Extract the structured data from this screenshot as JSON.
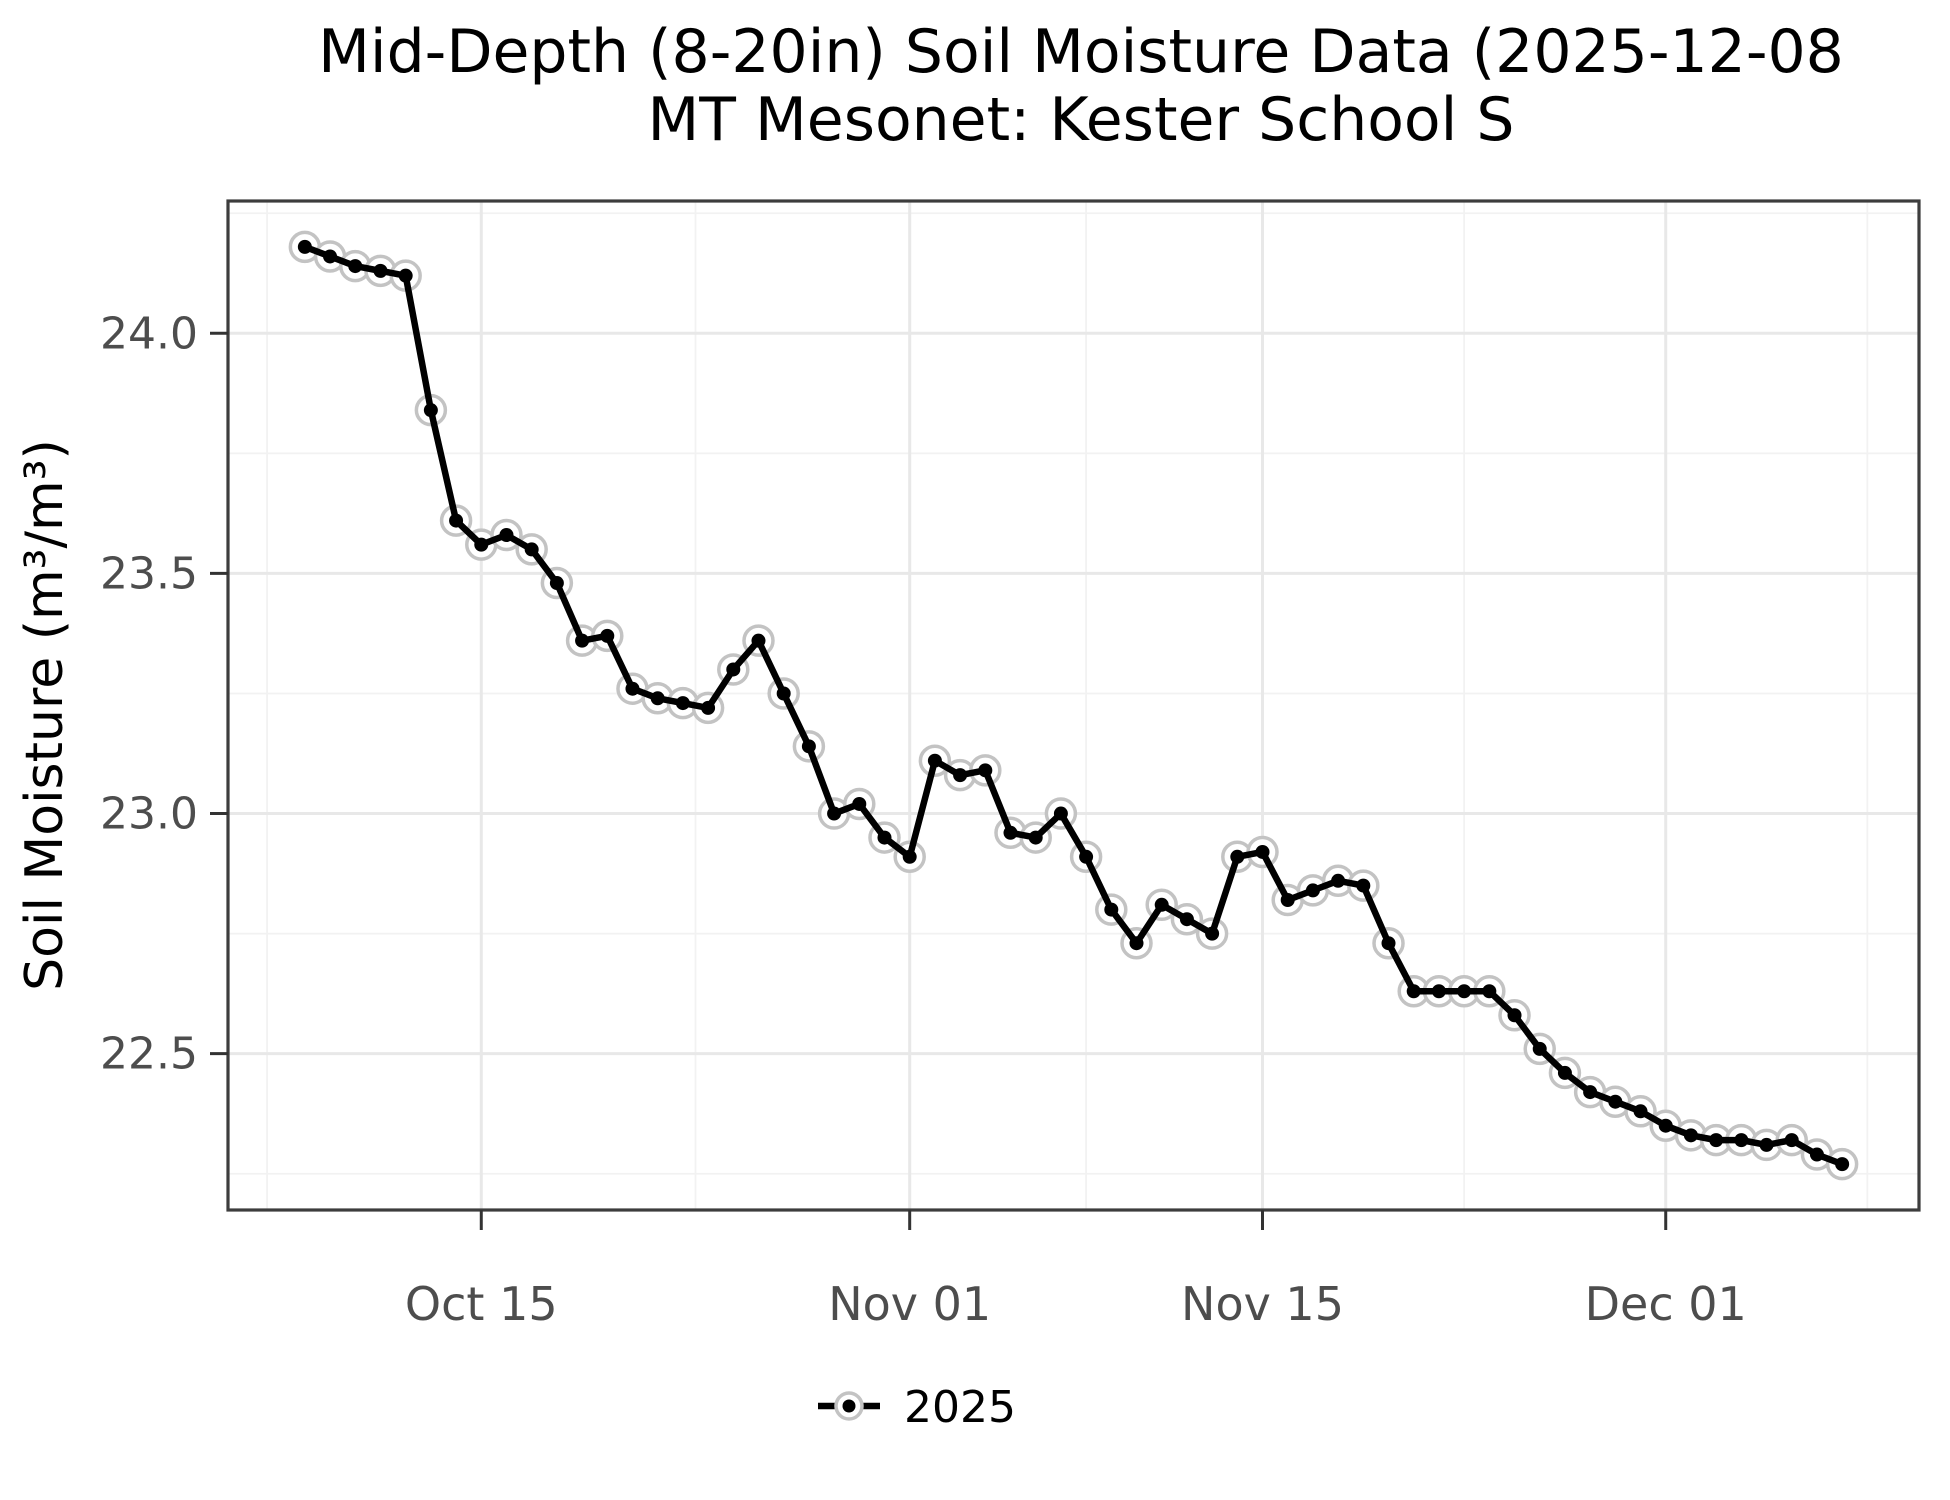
{
  "title": {
    "line1": "Mid-Depth (8-20in) Soil Moisture Data (2025-12-08",
    "line2": "MT Mesonet: Kester School S"
  },
  "legend": {
    "label": "2025",
    "position": "bottom"
  },
  "chart_data": {
    "type": "line",
    "title": "Mid-Depth (8-20in) Soil Moisture Data (2025-12-08",
    "subtitle": "MT Mesonet: Kester School S",
    "xlabel": "",
    "ylabel": "Soil Moisture (m³/m³)",
    "grid": "on",
    "legend_position": "bottom",
    "x_start_date": "2025-10-08",
    "x_tick_labels": [
      "Oct 15",
      "Nov 01",
      "Nov 15",
      "Dec 01"
    ],
    "x_tick_dates": [
      "2025-10-15",
      "2025-11-01",
      "2025-11-15",
      "2025-12-01"
    ],
    "y_tick_labels": [
      "24.0",
      "23.5",
      "23.0",
      "22.5"
    ],
    "y_tick_values": [
      24.0,
      23.5,
      23.0,
      22.5
    ],
    "y_minor_values": [
      24.25,
      23.75,
      23.25,
      22.75,
      22.25
    ],
    "ylim_padded": [
      22.174,
      24.276
    ],
    "series": [
      {
        "name": "2025",
        "color": "#000000",
        "dates": [
          "2025-10-08",
          "2025-10-09",
          "2025-10-10",
          "2025-10-11",
          "2025-10-12",
          "2025-10-13",
          "2025-10-14",
          "2025-10-15",
          "2025-10-16",
          "2025-10-17",
          "2025-10-18",
          "2025-10-19",
          "2025-10-20",
          "2025-10-21",
          "2025-10-22",
          "2025-10-23",
          "2025-10-24",
          "2025-10-25",
          "2025-10-26",
          "2025-10-27",
          "2025-10-28",
          "2025-10-29",
          "2025-10-30",
          "2025-10-31",
          "2025-11-01",
          "2025-11-02",
          "2025-11-03",
          "2025-11-04",
          "2025-11-05",
          "2025-11-06",
          "2025-11-07",
          "2025-11-08",
          "2025-11-09",
          "2025-11-10",
          "2025-11-11",
          "2025-11-12",
          "2025-11-13",
          "2025-11-14",
          "2025-11-15",
          "2025-11-16",
          "2025-11-17",
          "2025-11-18",
          "2025-11-19",
          "2025-11-20",
          "2025-11-21",
          "2025-11-22",
          "2025-11-23",
          "2025-11-24",
          "2025-11-25",
          "2025-11-26",
          "2025-11-27",
          "2025-11-28",
          "2025-11-29",
          "2025-11-30",
          "2025-12-01",
          "2025-12-02",
          "2025-12-03",
          "2025-12-04",
          "2025-12-05",
          "2025-12-06",
          "2025-12-07",
          "2025-12-08"
        ],
        "values": [
          24.18,
          24.16,
          24.14,
          24.13,
          24.12,
          23.84,
          23.61,
          23.56,
          23.58,
          23.55,
          23.48,
          23.36,
          23.37,
          23.26,
          23.24,
          23.23,
          23.22,
          23.3,
          23.36,
          23.25,
          23.14,
          23.0,
          23.02,
          22.95,
          22.91,
          23.11,
          23.08,
          23.09,
          22.96,
          22.95,
          23.0,
          22.91,
          22.8,
          22.73,
          22.81,
          22.78,
          22.75,
          22.91,
          22.92,
          22.82,
          22.84,
          22.86,
          22.85,
          22.73,
          22.63,
          22.63,
          22.63,
          22.63,
          22.58,
          22.51,
          22.46,
          22.42,
          22.4,
          22.38,
          22.35,
          22.33,
          22.32,
          22.32,
          22.31,
          22.32,
          22.29,
          22.27
        ]
      }
    ]
  },
  "style": {
    "line_color": "#000000",
    "halo_color": "#c3c3c3",
    "grid_major_color": "#e8e8e8",
    "grid_minor_color": "#f2f2f2",
    "panel_border_color": "#3d3d3d",
    "tick_color": "#333333",
    "tick_text_color": "#4d4d4d"
  }
}
